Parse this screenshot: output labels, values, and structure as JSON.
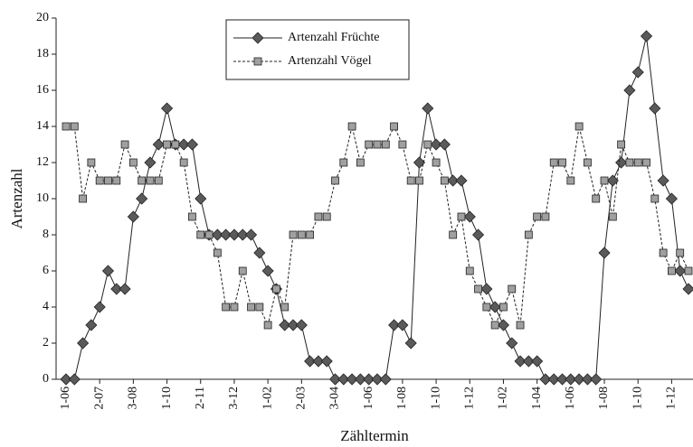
{
  "chart_data": {
    "type": "line",
    "xlabel": "Zähltermin",
    "ylabel": "Artenzahl",
    "categories": [
      "1-06",
      null,
      null,
      null,
      "2-07",
      null,
      null,
      null,
      "3-08",
      null,
      null,
      null,
      "1-10",
      null,
      null,
      null,
      "2-11",
      null,
      null,
      null,
      "3-12",
      null,
      null,
      null,
      "1-02",
      null,
      null,
      null,
      "2-03",
      null,
      null,
      null,
      "3-04",
      null,
      null,
      null,
      "1-06",
      null,
      null,
      null,
      "1-08",
      null,
      null,
      null,
      "1-10",
      null,
      null,
      null,
      "1-12",
      null,
      null,
      null,
      "1-02",
      null,
      null,
      null,
      "1-04",
      null,
      null,
      null,
      "1-06",
      null,
      null,
      null,
      "1-08",
      null,
      null,
      null,
      "1-10",
      null,
      null,
      null,
      "1-12",
      null,
      null
    ],
    "series": [
      {
        "name": "Artenzahl Früchte",
        "color": "#5a5a5a",
        "marker": "diamond",
        "dashed": false,
        "values": [
          0,
          0,
          2,
          3,
          4,
          6,
          5,
          5,
          9,
          10,
          12,
          13,
          15,
          13,
          13,
          13,
          10,
          8,
          8,
          8,
          8,
          8,
          8,
          7,
          6,
          5,
          3,
          3,
          3,
          1,
          1,
          1,
          0,
          0,
          0,
          0,
          0,
          0,
          0,
          3,
          3,
          2,
          12,
          15,
          13,
          13,
          11,
          11,
          9,
          8,
          5,
          4,
          3,
          2,
          1,
          1,
          1,
          0,
          0,
          0,
          0,
          0,
          0,
          0,
          7,
          11,
          12,
          16,
          17,
          19,
          15,
          11,
          10,
          6,
          5
        ]
      },
      {
        "name": "Artenzahl Vögel",
        "color": "#a0a0a0",
        "marker": "square",
        "dashed": true,
        "values": [
          14,
          14,
          10,
          12,
          11,
          11,
          11,
          13,
          12,
          11,
          11,
          11,
          13,
          13,
          12,
          9,
          8,
          8,
          7,
          4,
          4,
          6,
          4,
          4,
          3,
          5,
          4,
          8,
          8,
          8,
          9,
          9,
          11,
          12,
          14,
          12,
          13,
          13,
          13,
          14,
          13,
          11,
          11,
          13,
          12,
          11,
          8,
          9,
          6,
          5,
          4,
          3,
          4,
          5,
          3,
          8,
          9,
          9,
          12,
          12,
          11,
          14,
          12,
          10,
          11,
          9,
          13,
          12,
          12,
          12,
          10,
          7,
          6,
          7,
          6
        ]
      }
    ],
    "ylim": [
      0,
      20
    ],
    "yticks": [
      0,
      2,
      4,
      6,
      8,
      10,
      12,
      14,
      16,
      18,
      20
    ],
    "grid": false,
    "legend": "top"
  }
}
